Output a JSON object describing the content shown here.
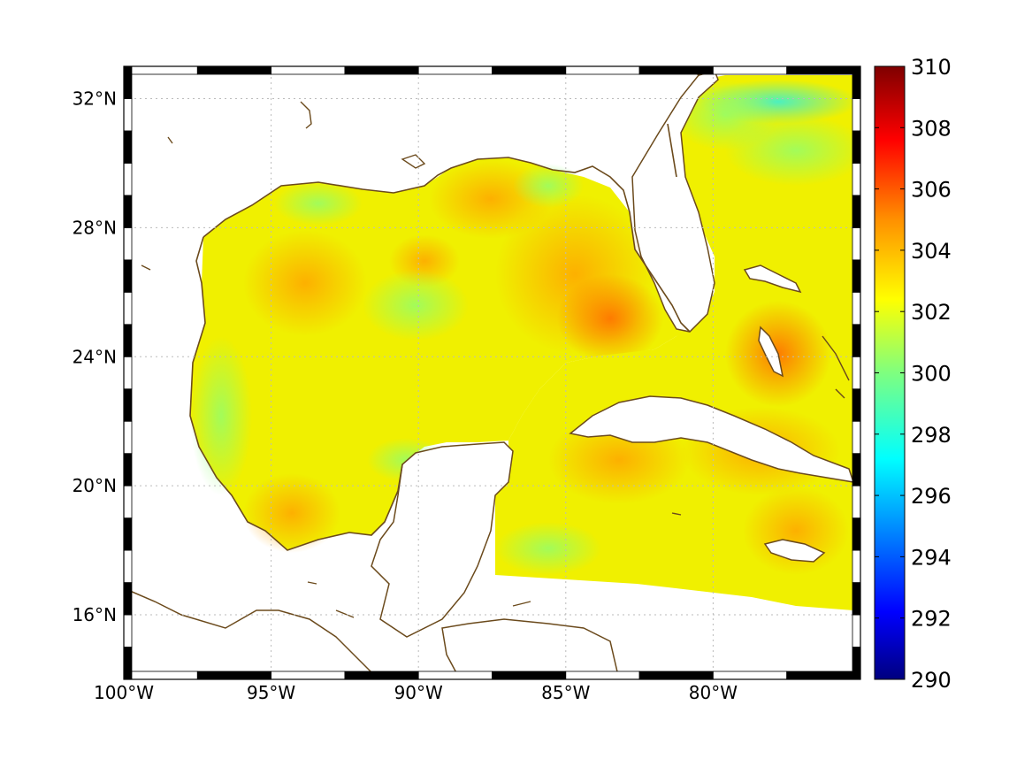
{
  "map": {
    "extent": {
      "lon_min": -100,
      "lon_max": -75,
      "lat_min": 14,
      "lat_max": 33
    },
    "lon_ticks": [
      {
        "value": -100,
        "label": "100°W"
      },
      {
        "value": -95,
        "label": "95°W"
      },
      {
        "value": -90,
        "label": "90°W"
      },
      {
        "value": -85,
        "label": "85°W"
      },
      {
        "value": -80,
        "label": "80°W"
      }
    ],
    "lat_ticks": [
      {
        "value": 16,
        "label": "16°N"
      },
      {
        "value": 20,
        "label": "20°N"
      },
      {
        "value": 24,
        "label": "24°N"
      },
      {
        "value": 28,
        "label": "28°N"
      },
      {
        "value": 32,
        "label": "32°N"
      }
    ],
    "grid": true,
    "frame_style": "alternating black/white border",
    "coastline_color": "#6b4a1c",
    "field_colormap": "jet",
    "field_description": "sea surface temperature field over the Gulf of Mexico and western Caribbean, mostly 301–305"
  },
  "colorbar": {
    "min": 290,
    "max": 310,
    "ticks": [
      {
        "value": 310,
        "label": "310"
      },
      {
        "value": 308,
        "label": "308"
      },
      {
        "value": 306,
        "label": "306"
      },
      {
        "value": 304,
        "label": "304"
      },
      {
        "value": 302,
        "label": "302"
      },
      {
        "value": 300,
        "label": "300"
      },
      {
        "value": 298,
        "label": "298"
      },
      {
        "value": 296,
        "label": "296"
      },
      {
        "value": 294,
        "label": "294"
      },
      {
        "value": 292,
        "label": "292"
      },
      {
        "value": 290,
        "label": "290"
      }
    ],
    "colors": [
      "#00007f",
      "#0000ff",
      "#007fff",
      "#00ffff",
      "#7fff7f",
      "#ffff00",
      "#ff7f00",
      "#ff0000",
      "#7f0000"
    ]
  }
}
